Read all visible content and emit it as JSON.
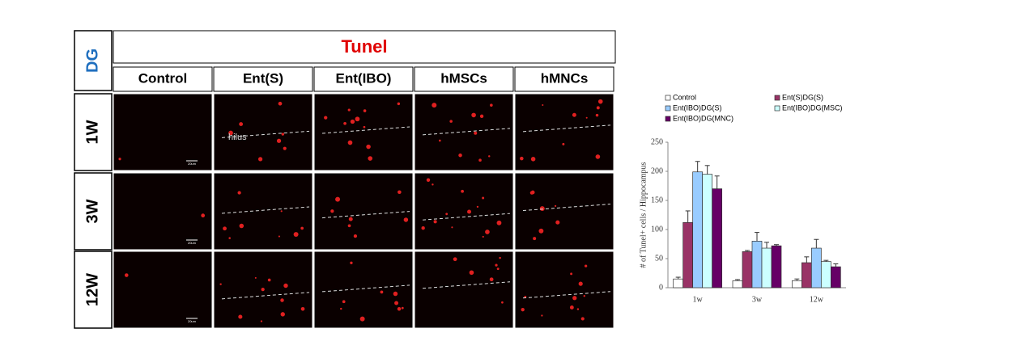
{
  "panel": {
    "title": "Tunel",
    "region": "DG",
    "columns": [
      "Control",
      "Ent(S)",
      "Ent(IBO)",
      "hMSCs",
      "hMNCs"
    ],
    "rows": [
      "1W",
      "3W",
      "12W"
    ],
    "annotation": "hilus",
    "scale_label": "20um"
  },
  "chart_data": {
    "type": "bar",
    "y_label": "# of Tunel+ cells / Hippocampus",
    "categories": [
      "1w",
      "3w",
      "12w"
    ],
    "series": [
      {
        "name": "Control",
        "color": "#ffffff",
        "values": [
          15,
          12,
          12
        ],
        "errors": [
          3,
          2,
          3
        ]
      },
      {
        "name": "Ent(S)DG(S)",
        "color": "#993366",
        "values": [
          112,
          62,
          43
        ],
        "errors": [
          20,
          2,
          10
        ]
      },
      {
        "name": "Ent(IBO)DG(S)",
        "color": "#99ccff",
        "values": [
          199,
          80,
          68
        ],
        "errors": [
          18,
          15,
          15
        ]
      },
      {
        "name": "Ent(IBO)DG(MSC)",
        "color": "#ccffff",
        "values": [
          195,
          68,
          45
        ],
        "errors": [
          15,
          10,
          2
        ]
      },
      {
        "name": "Ent(IBO)DG(MNC)",
        "color": "#660066",
        "values": [
          170,
          72,
          36
        ],
        "errors": [
          22,
          2,
          5
        ]
      }
    ],
    "ylim": [
      0,
      250
    ],
    "yticks": [
      0,
      50,
      100,
      150,
      200,
      250
    ]
  }
}
